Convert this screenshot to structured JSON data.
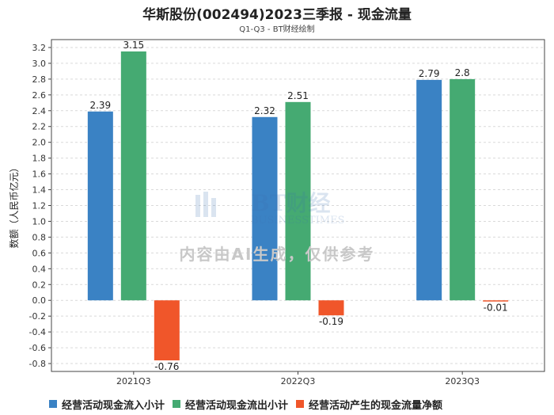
{
  "title": "华斯股份(002494)2023三季报 - 现金流量",
  "subtitle": "Q1-Q3 - BT财经绘制",
  "watermark": {
    "logo_text": "BT财经",
    "logo_sub": "BUSINESSTIMES",
    "text": "内容由AI生成，仅供参考"
  },
  "colors": {
    "inflow": "#3a82c4",
    "outflow": "#45aa72",
    "net": "#f0562a"
  },
  "chart_data": {
    "type": "bar",
    "title": "华斯股份(002494)2023三季报 - 现金流量",
    "subtitle": "Q1-Q3 - BT财经绘制",
    "ylabel": "数额（人民币亿元）",
    "ylim": [
      -0.9,
      3.3
    ],
    "yticks": [
      "-0.8",
      "-0.6",
      "-0.4",
      "-0.2",
      "0.0",
      "0.2",
      "0.4",
      "0.6",
      "0.8",
      "1.0",
      "1.2",
      "1.4",
      "1.6",
      "1.8",
      "2.0",
      "2.2",
      "2.4",
      "2.6",
      "2.8",
      "3.0",
      "3.2"
    ],
    "categories": [
      "2021Q3",
      "2022Q3",
      "2023Q3"
    ],
    "series": [
      {
        "name": "经营活动现金流入小计",
        "color": "#3a82c4",
        "values": [
          2.39,
          2.32,
          2.79
        ],
        "labels": [
          "2.39",
          "2.32",
          "2.79"
        ]
      },
      {
        "name": "经营活动现金流出小计",
        "color": "#45aa72",
        "values": [
          3.15,
          2.51,
          2.8
        ],
        "labels": [
          "3.15",
          "2.51",
          "2.8"
        ]
      },
      {
        "name": "经营活动产生的现金流量净额",
        "color": "#f0562a",
        "values": [
          -0.76,
          -0.19,
          -0.01
        ],
        "labels": [
          "-0.76",
          "-0.19",
          "-0.01"
        ]
      }
    ],
    "grid": true,
    "legend": "bottom"
  }
}
